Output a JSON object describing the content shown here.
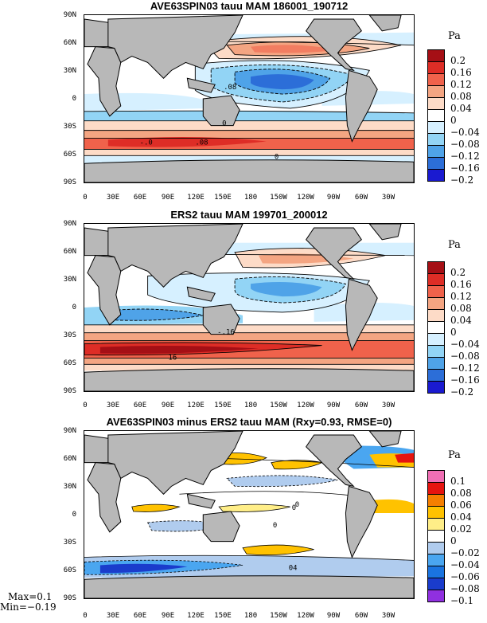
{
  "panels": [
    {
      "title": "AVE63SPIN03 tauu MAM 186001_190712",
      "units": "Pa",
      "levels": [
        "0.2",
        "0.16",
        "0.12",
        "0.08",
        "0.04",
        "0",
        "−0.04",
        "−0.08",
        "−0.12",
        "−0.16",
        "−0.2"
      ],
      "colors": [
        "#a50f15",
        "#de2d26",
        "#f0624b",
        "#f4a582",
        "#fddbc7",
        "#ffffff",
        "#d6f0ff",
        "#92d4f5",
        "#4fa3e8",
        "#2c6ed8",
        "#1a1ad0"
      ],
      "contour_labels": [
        ".08",
        "0",
        "-.0",
        ".08",
        "0"
      ]
    },
    {
      "title": "ERS2 tauu MAM 199701_200012",
      "units": "Pa",
      "levels": [
        "0.2",
        "0.16",
        "0.12",
        "0.08",
        "0.04",
        "0",
        "−0.04",
        "−0.08",
        "−0.12",
        "−0.16",
        "−0.2"
      ],
      "colors": [
        "#a50f15",
        "#de2d26",
        "#f0624b",
        "#f4a582",
        "#fddbc7",
        "#ffffff",
        "#d6f0ff",
        "#92d4f5",
        "#4fa3e8",
        "#2c6ed8",
        "#1a1ad0"
      ],
      "contour_labels": [
        "-.16",
        "16"
      ]
    },
    {
      "title": "AVE63SPIN03 minus ERS2 tauu MAM (Rxy=0.93, RMSE=0)",
      "units": "Pa",
      "levels": [
        "0.1",
        "0.08",
        "0.06",
        "0.04",
        "0.02",
        "0",
        "−0.02",
        "−0.04",
        "−0.06",
        "−0.08",
        "−0.1"
      ],
      "colors": [
        "#f06eb4",
        "#e6140f",
        "#f57f00",
        "#ffc200",
        "#ffee88",
        "#ffffff",
        "#b0ccee",
        "#4aa6f0",
        "#1a74e0",
        "#1a3ccc",
        "#9030e0"
      ],
      "contour_labels": [
        "0",
        "0",
        "0",
        "04"
      ]
    }
  ],
  "lat_labels": [
    "90N",
    "60N",
    "30N",
    "0",
    "30S",
    "60S",
    "90S"
  ],
  "lon_labels": [
    "0",
    "30E",
    "60E",
    "90E",
    "120E",
    "150E",
    "180",
    "150W",
    "120W",
    "90W",
    "60W",
    "30W"
  ],
  "stats": {
    "max": "Max=0.1",
    "min": "Min=−0.19"
  }
}
